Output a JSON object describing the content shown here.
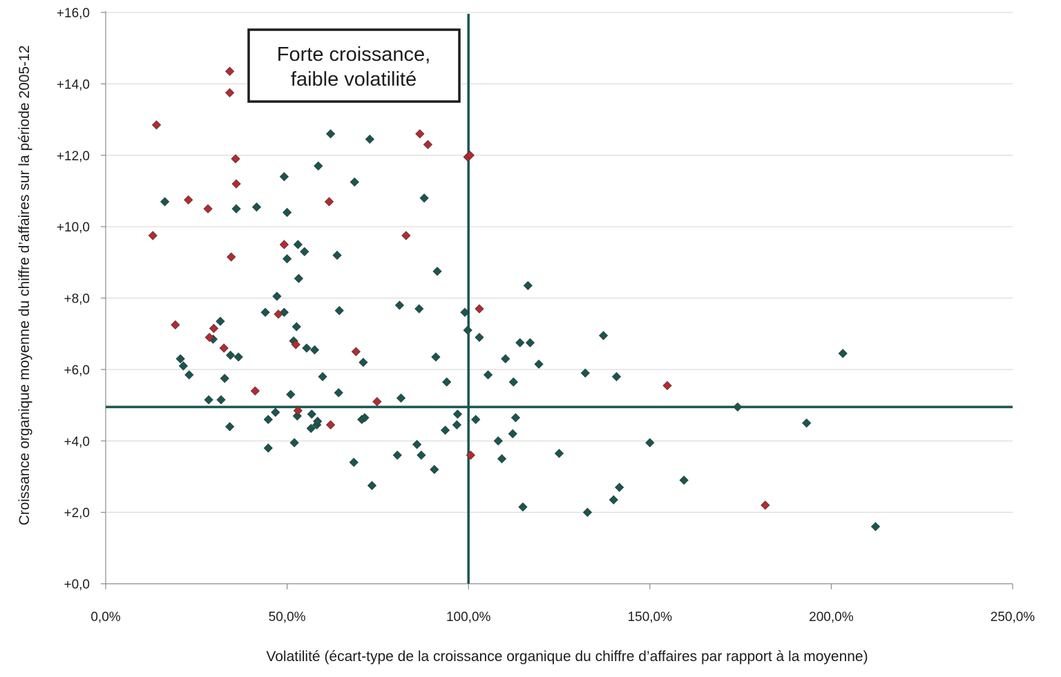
{
  "colors": {
    "teal": "#1a5650",
    "red": "#b62a30",
    "grid": "#d4d4d4",
    "axis": "#8a8a8a"
  },
  "chart_data": {
    "type": "scatter",
    "xlabel": "Volatilité (écart-type de la croissance organique du chiffre d’affaires par rapport à la moyenne)",
    "ylabel": "Croissance organique moyenne du chiffre d’affaires sur la période 2005-12",
    "xlim": [
      0,
      250
    ],
    "ylim": [
      0,
      16
    ],
    "x_ticks": [
      0,
      50,
      100,
      150,
      200,
      250
    ],
    "y_ticks": [
      0,
      2,
      4,
      6,
      8,
      10,
      12,
      14,
      16
    ],
    "x_tick_labels": [
      "0,0%",
      "50,0%",
      "100,0%",
      "150,0%",
      "200,0%",
      "250,0%"
    ],
    "y_tick_labels": [
      "+0,0",
      "+2,0",
      "+4,0",
      "+6,0",
      "+8,0",
      "+10,0",
      "+12,0",
      "+14,0",
      "+16,0"
    ],
    "grid": "horizontal",
    "reference_lines": {
      "x": 100,
      "y": 4.95
    },
    "annotation": [
      "Forte croissance,",
      "faible volatilité"
    ],
    "series": [
      {
        "marker": "diamond",
        "color": "#1a5650",
        "points": [
          [
            16.3,
            10.7
          ],
          [
            20.6,
            6.3
          ],
          [
            21.4,
            6.1
          ],
          [
            23.0,
            5.85
          ],
          [
            28.4,
            5.15
          ],
          [
            29.6,
            6.85
          ],
          [
            31.6,
            7.35
          ],
          [
            31.8,
            5.15
          ],
          [
            32.8,
            5.75
          ],
          [
            34.2,
            4.4
          ],
          [
            34.4,
            6.4
          ],
          [
            36.0,
            10.5
          ],
          [
            36.6,
            6.35
          ],
          [
            41.6,
            10.55
          ],
          [
            44.0,
            7.6
          ],
          [
            44.8,
            4.6
          ],
          [
            44.8,
            3.8
          ],
          [
            46.8,
            4.8
          ],
          [
            47.2,
            8.05
          ],
          [
            49.2,
            11.4
          ],
          [
            49.2,
            7.6
          ],
          [
            50.0,
            10.4
          ],
          [
            50.0,
            9.1
          ],
          [
            51.0,
            5.3
          ],
          [
            51.8,
            6.8
          ],
          [
            52.0,
            3.95
          ],
          [
            52.6,
            7.2
          ],
          [
            52.8,
            4.7
          ],
          [
            53.0,
            9.5
          ],
          [
            53.2,
            8.55
          ],
          [
            54.8,
            9.3
          ],
          [
            55.4,
            6.6
          ],
          [
            56.6,
            4.35
          ],
          [
            56.8,
            4.75
          ],
          [
            57.6,
            6.55
          ],
          [
            58.2,
            4.45
          ],
          [
            58.4,
            4.55
          ],
          [
            58.6,
            11.7
          ],
          [
            59.8,
            5.8
          ],
          [
            62.0,
            12.6
          ],
          [
            63.8,
            9.2
          ],
          [
            64.2,
            5.35
          ],
          [
            64.4,
            7.65
          ],
          [
            68.4,
            3.4
          ],
          [
            68.6,
            11.25
          ],
          [
            70.6,
            4.6
          ],
          [
            71.0,
            6.2
          ],
          [
            71.4,
            4.65
          ],
          [
            72.8,
            12.45
          ],
          [
            73.4,
            2.75
          ],
          [
            80.4,
            3.6
          ],
          [
            81.0,
            7.8
          ],
          [
            81.4,
            5.2
          ],
          [
            85.8,
            3.9
          ],
          [
            86.4,
            7.7
          ],
          [
            87.0,
            3.6
          ],
          [
            87.8,
            10.8
          ],
          [
            90.6,
            3.2
          ],
          [
            91.0,
            6.35
          ],
          [
            91.4,
            8.75
          ],
          [
            93.6,
            4.3
          ],
          [
            94.0,
            5.65
          ],
          [
            96.8,
            4.45
          ],
          [
            97.0,
            4.75
          ],
          [
            99.0,
            7.6
          ],
          [
            99.8,
            7.1
          ],
          [
            102.0,
            4.6
          ],
          [
            103.0,
            6.9
          ],
          [
            105.4,
            5.85
          ],
          [
            108.2,
            4.0
          ],
          [
            109.2,
            3.5
          ],
          [
            110.2,
            6.3
          ],
          [
            112.2,
            4.2
          ],
          [
            112.4,
            5.65
          ],
          [
            113.0,
            4.65
          ],
          [
            114.2,
            6.75
          ],
          [
            115.0,
            2.15
          ],
          [
            116.4,
            8.35
          ],
          [
            117.0,
            6.75
          ],
          [
            119.4,
            6.15
          ],
          [
            125.0,
            3.65
          ],
          [
            132.2,
            5.9
          ],
          [
            132.8,
            2.0
          ],
          [
            137.2,
            6.95
          ],
          [
            140.0,
            2.35
          ],
          [
            140.8,
            5.8
          ],
          [
            141.6,
            2.7
          ],
          [
            150.0,
            3.95
          ],
          [
            159.4,
            2.9
          ],
          [
            174.2,
            4.95
          ],
          [
            193.2,
            4.5
          ],
          [
            203.2,
            6.45
          ],
          [
            212.2,
            1.6
          ]
        ]
      },
      {
        "marker": "diamond",
        "color": "#b62a30",
        "points": [
          [
            13.0,
            9.75
          ],
          [
            14.0,
            12.85
          ],
          [
            19.2,
            7.25
          ],
          [
            22.8,
            10.75
          ],
          [
            28.2,
            10.5
          ],
          [
            28.6,
            6.9
          ],
          [
            29.8,
            7.15
          ],
          [
            32.6,
            6.6
          ],
          [
            34.2,
            14.35
          ],
          [
            34.2,
            13.75
          ],
          [
            34.6,
            9.15
          ],
          [
            35.8,
            11.9
          ],
          [
            36.0,
            11.2
          ],
          [
            41.2,
            5.4
          ],
          [
            47.6,
            7.55
          ],
          [
            49.2,
            9.5
          ],
          [
            52.4,
            6.7
          ],
          [
            53.0,
            4.85
          ],
          [
            61.6,
            10.7
          ],
          [
            62.0,
            4.45
          ],
          [
            69.0,
            6.5
          ],
          [
            74.8,
            5.1
          ],
          [
            82.8,
            9.75
          ],
          [
            86.6,
            12.6
          ],
          [
            88.8,
            12.3
          ],
          [
            99.8,
            11.95
          ],
          [
            100.4,
            12.0
          ],
          [
            100.6,
            3.6
          ],
          [
            103.0,
            7.7
          ],
          [
            154.8,
            5.55
          ],
          [
            181.8,
            2.2
          ]
        ]
      }
    ]
  }
}
